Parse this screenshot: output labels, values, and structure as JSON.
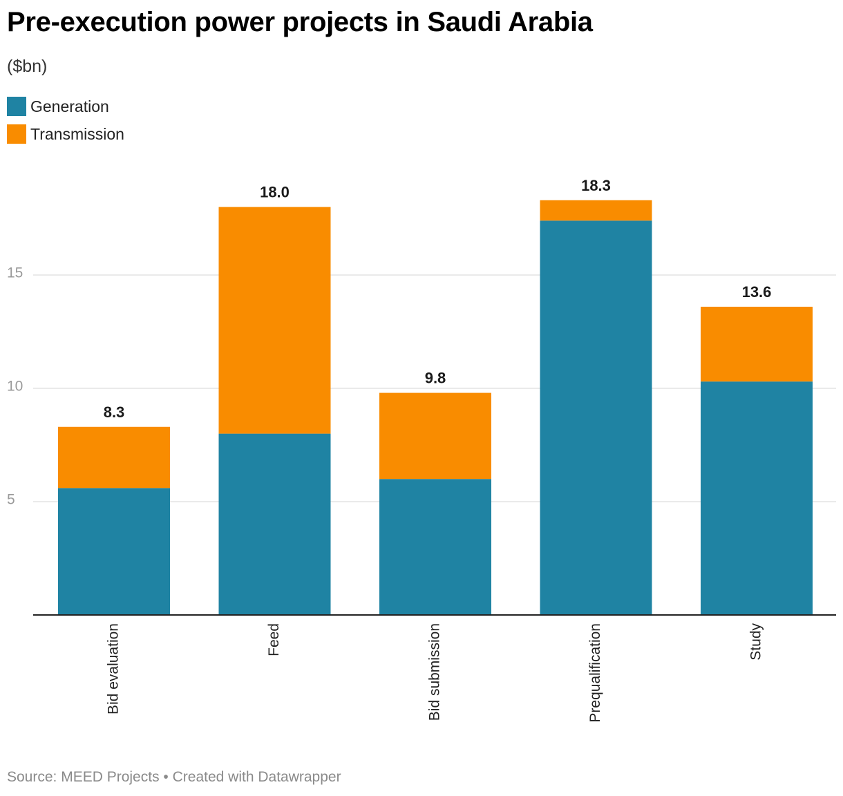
{
  "title": "Pre-execution power projects in Saudi Arabia",
  "subtitle": "($bn)",
  "footer": {
    "source": "Source: MEED Projects",
    "separator": "•",
    "credit": "Created with Datawrapper"
  },
  "chart_data": {
    "type": "bar",
    "stacked": true,
    "orientation": "vertical",
    "categories": [
      "Bid evaluation",
      "Feed",
      "Bid submission",
      "Prequalification",
      "Study"
    ],
    "series": [
      {
        "name": "Generation",
        "color": "#1f83a3",
        "values": [
          5.6,
          8.0,
          6.0,
          17.4,
          10.3
        ]
      },
      {
        "name": "Transmission",
        "color": "#f98c00",
        "values": [
          2.7,
          10.0,
          3.8,
          0.9,
          3.3
        ]
      }
    ],
    "totals": [
      "8.3",
      "18.0",
      "9.8",
      "18.3",
      "13.6"
    ],
    "y_ticks": [
      5,
      10,
      15
    ],
    "ylim": [
      0,
      20
    ],
    "grid": true,
    "legend_position": "top-left",
    "x_tick_rotation": "vertical"
  }
}
